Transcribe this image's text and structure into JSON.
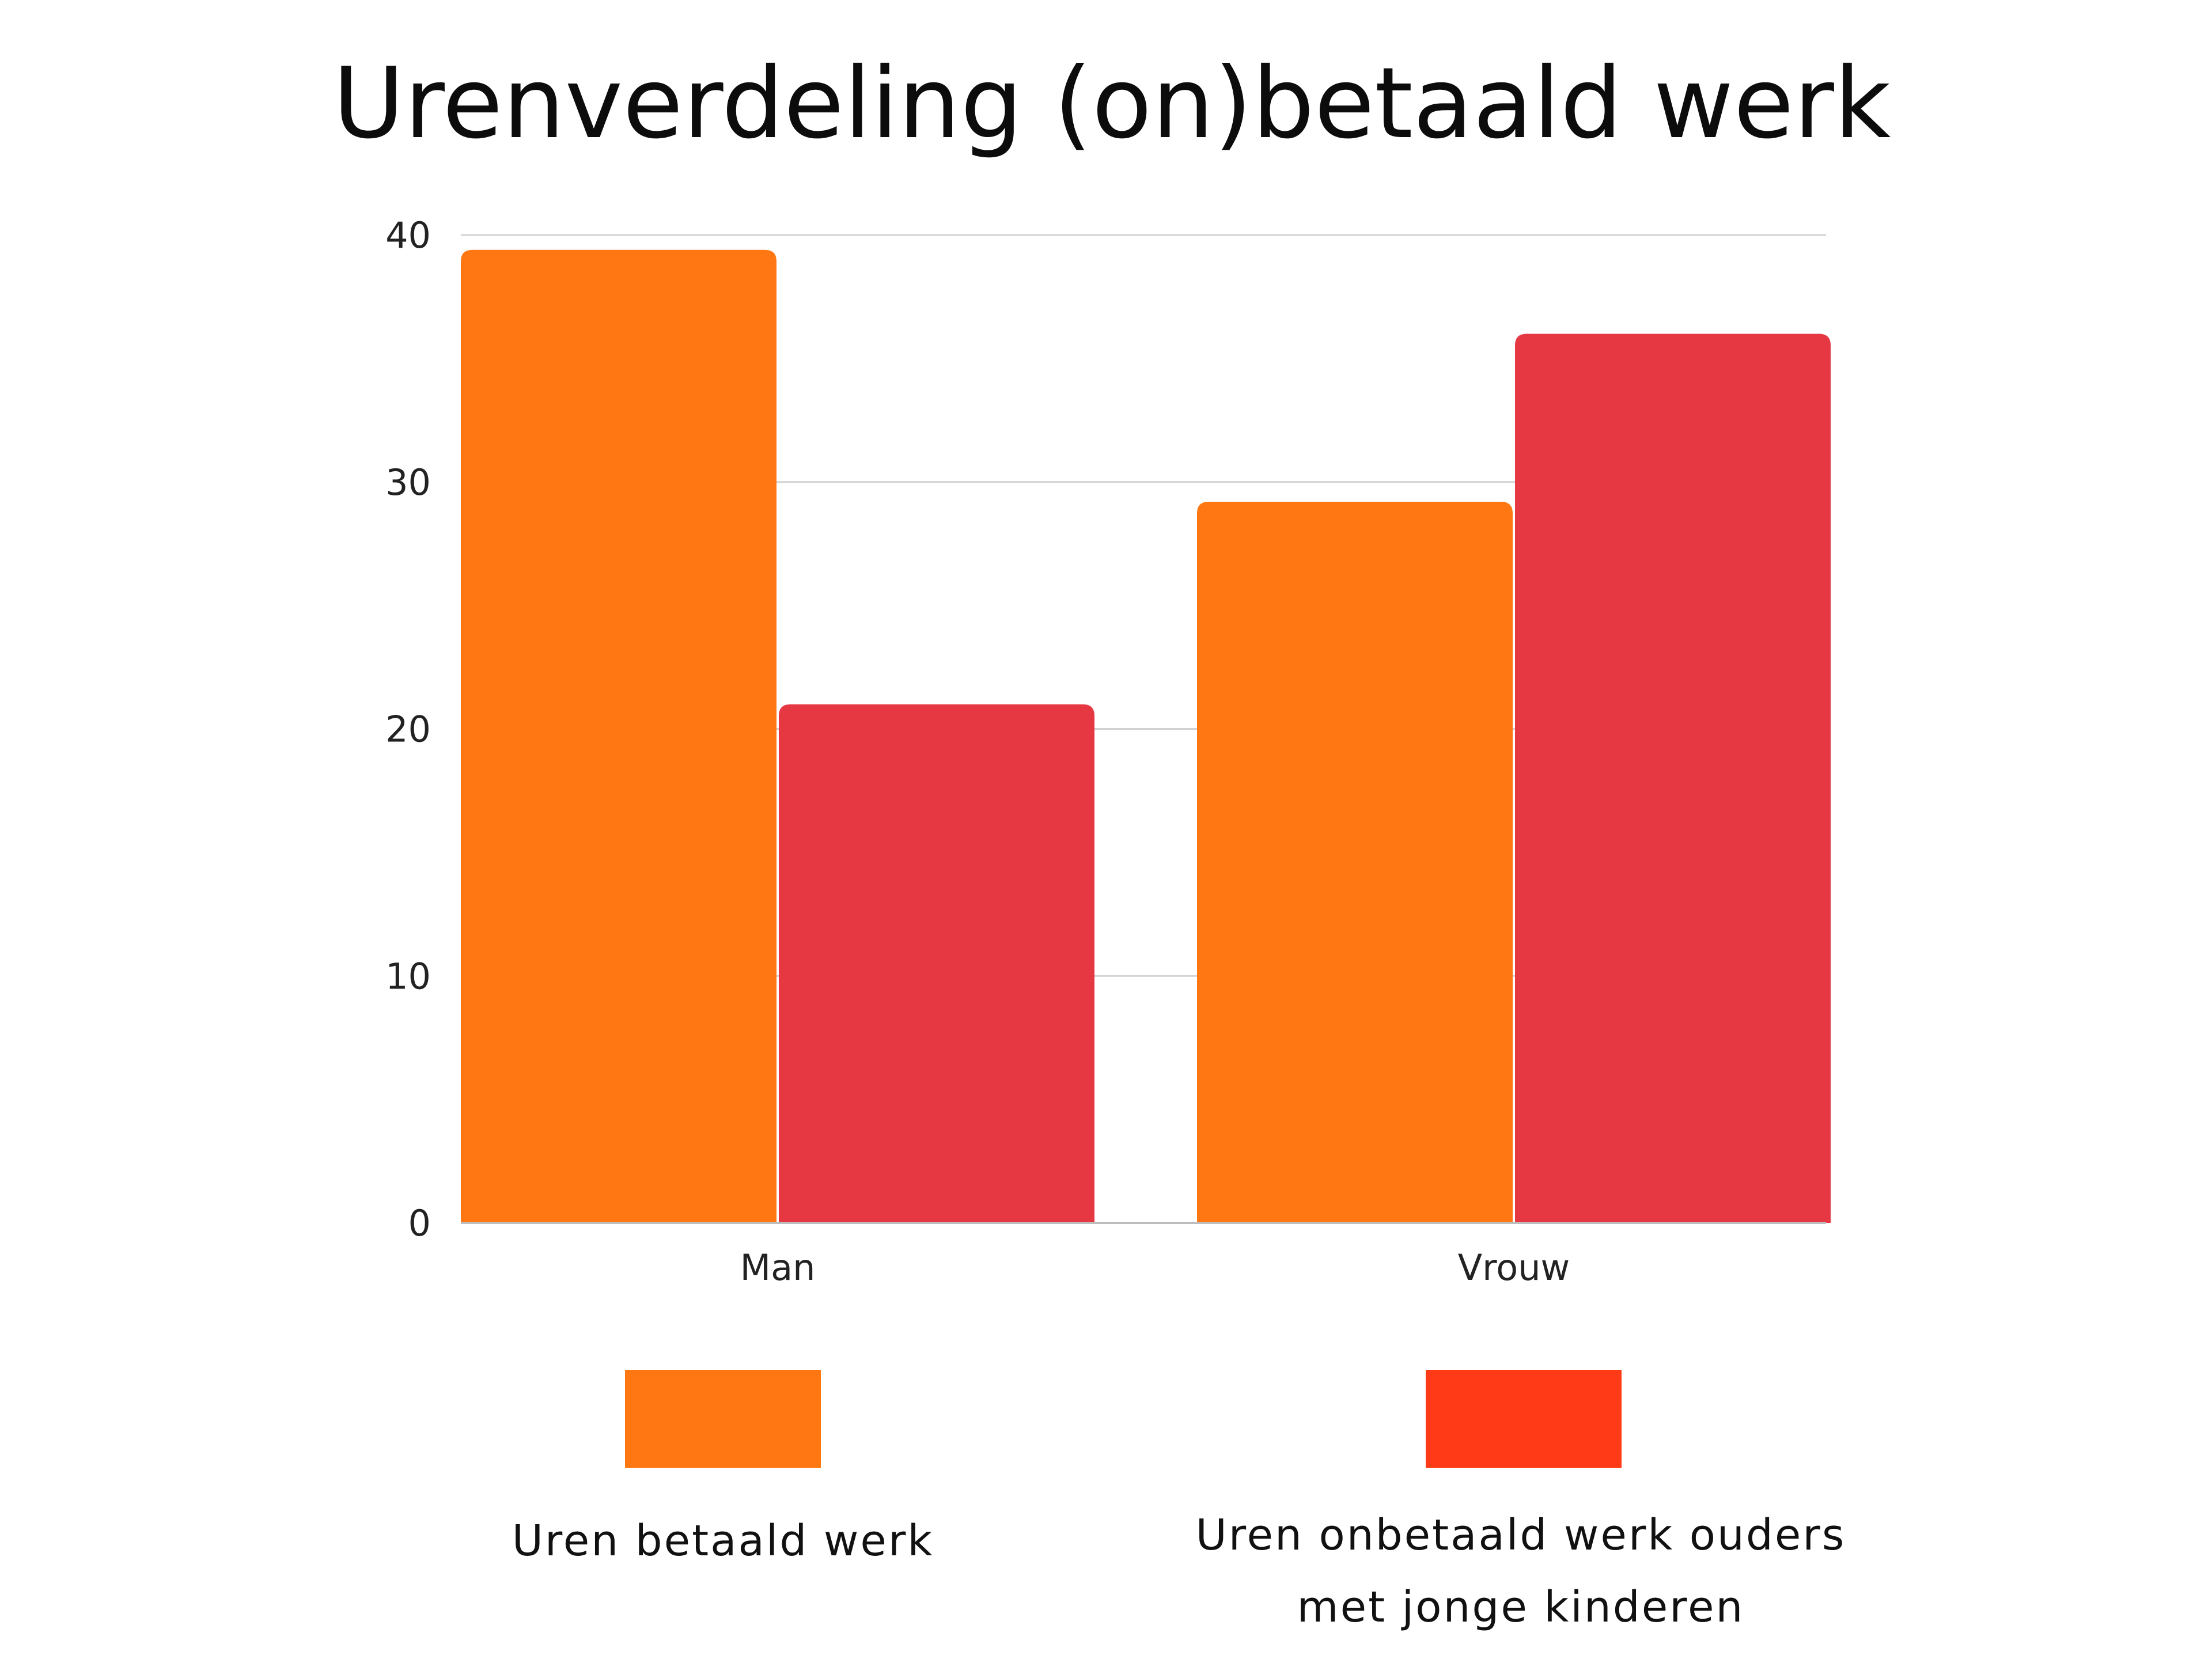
{
  "chart_data": {
    "type": "bar",
    "title": "Urenverdeling (on)betaald werk",
    "xlabel": "",
    "ylabel": "",
    "ylim": [
      0,
      40
    ],
    "yticks": [
      0,
      10,
      20,
      30,
      40
    ],
    "grid": true,
    "categories": [
      "Man",
      "Vrouw"
    ],
    "series": [
      {
        "name": "Uren betaald werk",
        "values": [
          39.4,
          29.2
        ],
        "color": "#FF7713"
      },
      {
        "name": "Uren onbetaald werk ouders met jonge kinderen",
        "values": [
          21.0,
          36.0
        ],
        "color": "#E63843"
      }
    ],
    "legend": {
      "placement": "bottom",
      "items": [
        {
          "label_lines": [
            "Uren betaald werk"
          ],
          "swatch_color": "#FF7713"
        },
        {
          "label_lines": [
            "Uren onbetaald werk ouders",
            "met jonge kinderen"
          ],
          "swatch_color": "#FF3A16"
        }
      ]
    }
  }
}
